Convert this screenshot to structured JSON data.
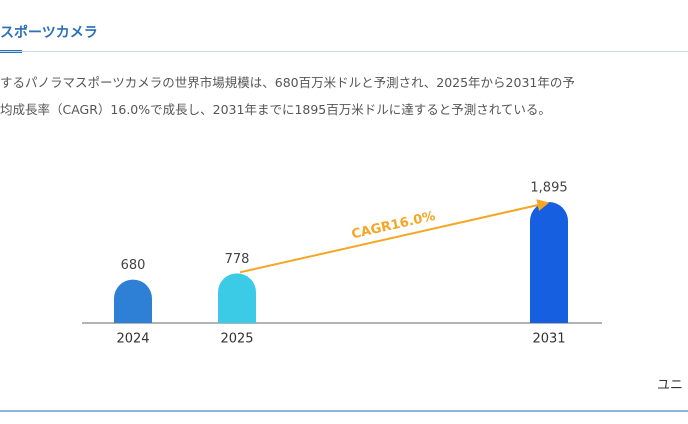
{
  "header": {
    "title": "スポーツカメラ"
  },
  "description": [
    "するパノラマスポーツカメラの世界市場規模は、680百万米ドルと予測され、2025年から2031年の予",
    "均成長率（CAGR）16.0%で成長し、2031年までに1895百万米ドルに達すると予測されている。"
  ],
  "chart_data": {
    "type": "bar",
    "categories": [
      "2024",
      "2025",
      "2031"
    ],
    "values": [
      680,
      778,
      1895
    ],
    "value_labels": [
      "680",
      "778",
      "1,895"
    ],
    "colors": [
      "#2e7fd6",
      "#3ccbe6",
      "#165fe0"
    ],
    "annotation": "CAGR16.0%"
  },
  "footer": {
    "unit": "ユニ"
  }
}
